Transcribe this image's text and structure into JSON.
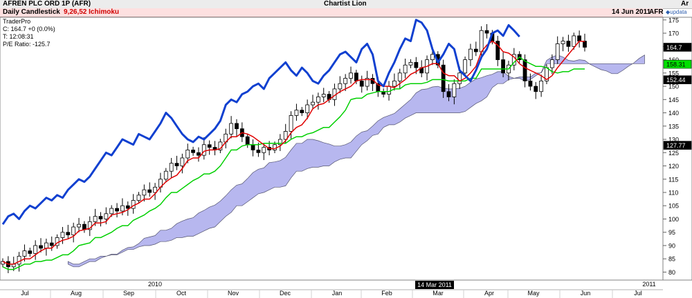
{
  "header": {
    "instrument": "AFREN PLC ORD 1P (AFR)",
    "title": "Chartist Lion",
    "currency": "Ar"
  },
  "chart_header": {
    "chart_type": "Daily Candlestick",
    "indicator": "9,26,52 Ichimoku",
    "date": "14 Jun 2011",
    "symbol": "AFR",
    "brand": "updata"
  },
  "info_panel": {
    "source": "TraderPro",
    "close": "C: 164.7 +0 (0.0%)",
    "time": "T: 12:08:31",
    "pe": "P/E Ratio: -125.7"
  },
  "x_axis": {
    "months": [
      "Jul",
      "Aug",
      "Sep",
      "Oct",
      "Nov",
      "Dec",
      "Jan",
      "Feb",
      "Mar",
      "Apr",
      "May",
      "Jun",
      "Jul"
    ],
    "years": [
      "2010",
      "2011"
    ],
    "cursor_date": "14 Mar 2011"
  },
  "chart_data": {
    "type": "candlestick",
    "title": "Daily Candlestick 9,26,52 Ichimoku",
    "ylim": [
      77,
      176
    ],
    "y_ticks": [
      80,
      85,
      90,
      95,
      100,
      105,
      110,
      115,
      120,
      125,
      130,
      135,
      140,
      145,
      150,
      155,
      160,
      165,
      170,
      175
    ],
    "price_labels": [
      {
        "name": "close",
        "value": 164.7,
        "color": "#000000",
        "text": "164.7"
      },
      {
        "name": "kijun",
        "value": 158.31,
        "color": "#00e000",
        "text": "158.31"
      },
      {
        "name": "cloud",
        "value": 152.44,
        "color": "#000000",
        "text": "152.44"
      },
      {
        "name": "cursor",
        "value": 127.77,
        "color": "#000000",
        "text": "127.77"
      }
    ],
    "closes": [
      84,
      82,
      83,
      86,
      88,
      87,
      90,
      89,
      91,
      90,
      93,
      95,
      94,
      97,
      98,
      96,
      99,
      101,
      100,
      102,
      104,
      103,
      105,
      104,
      107,
      109,
      111,
      110,
      112,
      115,
      118,
      121,
      120,
      123,
      126,
      125,
      124,
      128,
      127,
      126,
      129,
      132,
      136,
      134,
      131,
      128,
      126,
      125,
      127,
      126,
      128,
      130,
      133,
      139,
      141,
      140,
      143,
      144,
      146,
      147,
      145,
      149,
      151,
      153,
      155,
      152,
      150,
      153,
      151,
      148,
      147,
      150,
      152,
      155,
      158,
      159,
      157,
      155,
      160,
      162,
      158,
      148,
      146,
      151,
      155,
      160,
      164,
      163,
      171,
      170,
      167,
      160,
      155,
      158,
      162,
      160,
      152,
      150,
      148,
      152,
      157,
      160,
      166,
      167,
      165,
      169,
      167,
      164.7
    ],
    "series": [
      {
        "name": "Lagging Span",
        "color": "#1040d0"
      },
      {
        "name": "Tenkan-sen",
        "color": "#e00000"
      },
      {
        "name": "Kijun-sen",
        "color": "#00d000"
      },
      {
        "name": "Kumo Cloud",
        "color": "#b0b0ee"
      }
    ]
  }
}
